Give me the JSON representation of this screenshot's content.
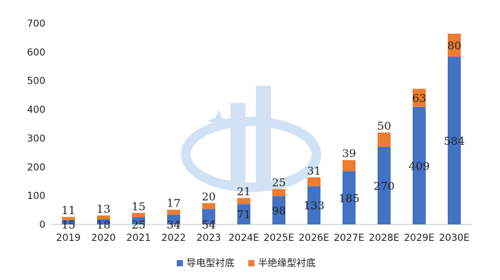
{
  "chart_data": {
    "type": "bar",
    "stacked": true,
    "title": "",
    "xlabel": "",
    "ylabel": "",
    "ylim": [
      0,
      700
    ],
    "yticks": [
      0,
      100,
      200,
      300,
      400,
      500,
      600,
      700
    ],
    "categories": [
      "2019",
      "2020",
      "2021",
      "2022",
      "2023",
      "2024E",
      "2025E",
      "2026E",
      "2027E",
      "2028E",
      "2029E",
      "2030E"
    ],
    "series": [
      {
        "name": "导电型衬底",
        "color": "#4472C4",
        "values": [
          15,
          18,
          25,
          34,
          54,
          71,
          98,
          133,
          185,
          270,
          409,
          584
        ]
      },
      {
        "name": "半绝缘型衬底",
        "color": "#ED7D31",
        "values": [
          11,
          13,
          15,
          17,
          20,
          21,
          25,
          31,
          39,
          50,
          63,
          80
        ]
      }
    ],
    "legend_position": "bottom-center",
    "grid": false
  }
}
